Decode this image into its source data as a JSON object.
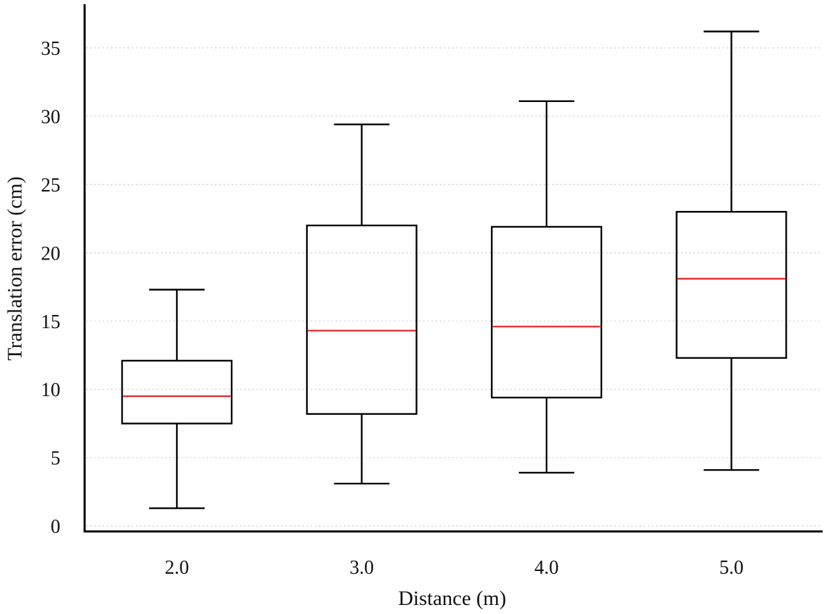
{
  "chart_data": {
    "type": "box",
    "title": "",
    "xlabel": "Distance (m)",
    "ylabel": "Translation error (cm)",
    "ylim": [
      -0.4,
      38.2
    ],
    "yticks": [
      0,
      5,
      10,
      15,
      20,
      25,
      30,
      35
    ],
    "ytick_labels": [
      "0",
      "5",
      "10",
      "15",
      "20",
      "25",
      "30",
      "35"
    ],
    "grid": "horizontal-dotted",
    "categories": [
      "2.0",
      "3.0",
      "4.0",
      "5.0"
    ],
    "boxes": [
      {
        "category": "2.0",
        "whisker_low": 1.3,
        "q1": 7.5,
        "median": 9.5,
        "q3": 12.1,
        "whisker_high": 17.3
      },
      {
        "category": "3.0",
        "whisker_low": 3.1,
        "q1": 8.2,
        "median": 14.3,
        "q3": 22.0,
        "whisker_high": 29.4
      },
      {
        "category": "4.0",
        "whisker_low": 3.9,
        "q1": 9.4,
        "median": 14.6,
        "q3": 21.9,
        "whisker_high": 31.1
      },
      {
        "category": "5.0",
        "whisker_low": 4.1,
        "q1": 12.3,
        "median": 18.1,
        "q3": 23.0,
        "whisker_high": 36.2
      }
    ],
    "colors": {
      "box": "#000000",
      "median": "#e8191c",
      "grid": "#c8c8c8",
      "axis": "#000000"
    }
  }
}
